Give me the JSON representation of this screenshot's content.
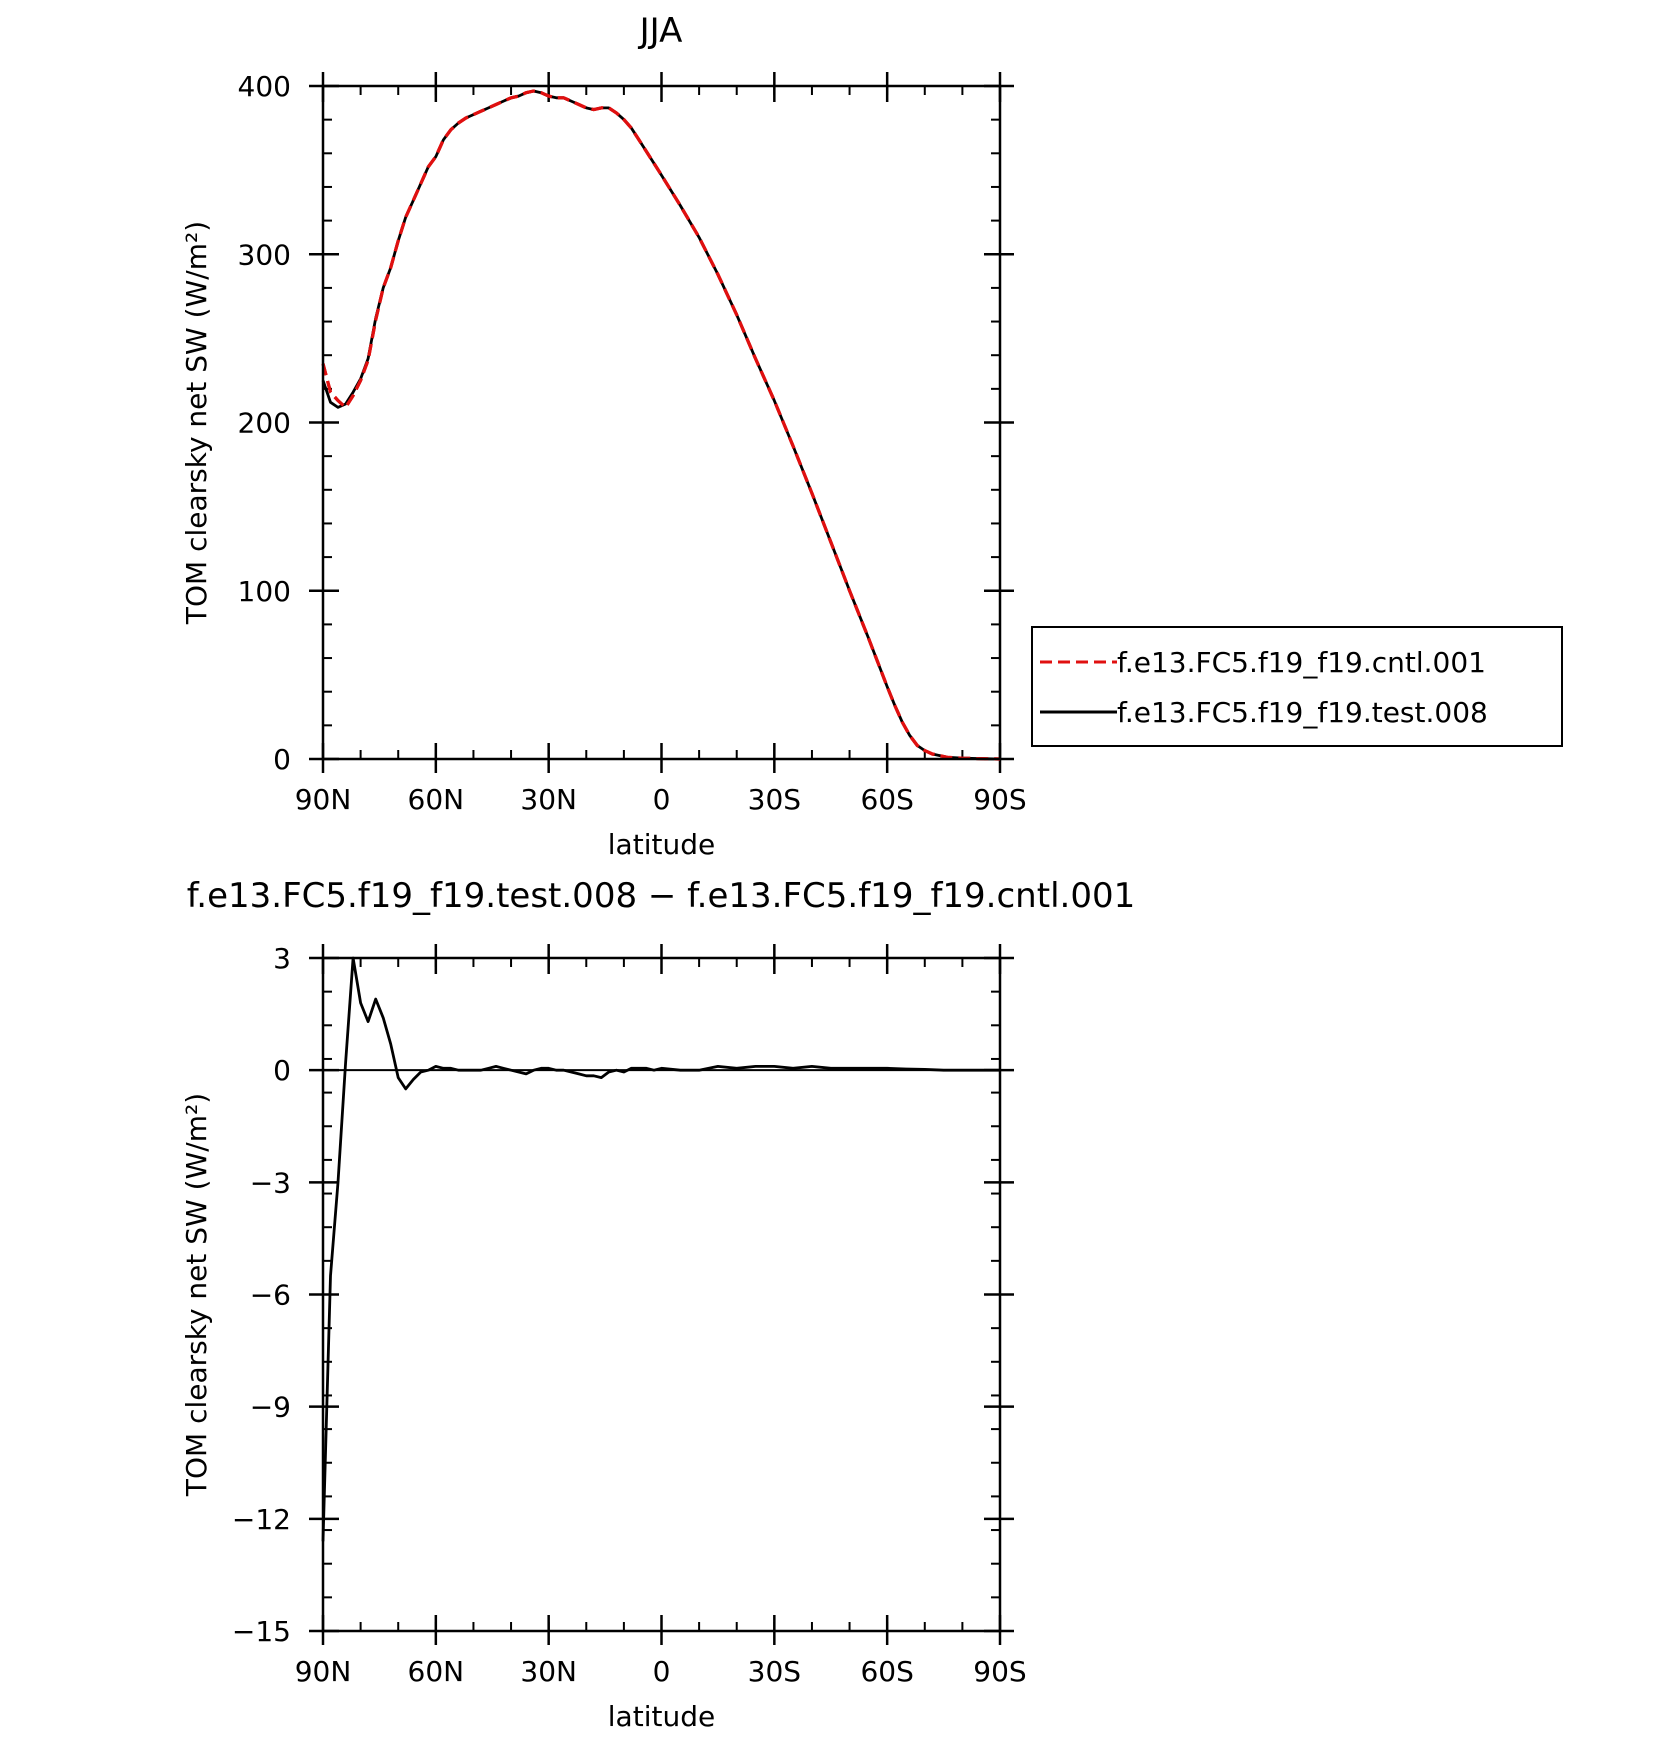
{
  "chart_data": [
    {
      "type": "line",
      "title": "JJA",
      "xlabel": "latitude",
      "ylabel": "TOM clearsky net SW (W/m²)",
      "xlim": [
        90,
        -90
      ],
      "ylim": [
        0,
        400
      ],
      "x_ticks": [
        90,
        60,
        30,
        0,
        -30,
        -60,
        -90
      ],
      "x_tick_labels": [
        "90N",
        "60N",
        "30N",
        "0",
        "30S",
        "60S",
        "90S"
      ],
      "y_ticks": [
        0,
        100,
        200,
        300,
        400
      ],
      "y_tick_labels": [
        "0",
        "100",
        "200",
        "300",
        "400"
      ],
      "legend_position": "right",
      "series": [
        {
          "name": "f.e13.FC5.f19_f19.cntl.001",
          "color": "#e01010",
          "style": "dashed",
          "x": [
            90,
            88,
            86,
            84,
            82,
            80,
            78,
            76,
            74,
            72,
            70,
            68,
            66,
            64,
            62,
            60,
            58,
            56,
            54,
            52,
            50,
            48,
            46,
            44,
            42,
            40,
            38,
            36,
            34,
            32,
            30,
            28,
            26,
            24,
            22,
            20,
            18,
            16,
            14,
            12,
            10,
            8,
            6,
            4,
            2,
            0,
            -5,
            -10,
            -15,
            -20,
            -25,
            -30,
            -35,
            -40,
            -45,
            -50,
            -55,
            -60,
            -62,
            -64,
            -66,
            -68,
            -70,
            -72,
            -74,
            -76,
            -80,
            -85,
            -90
          ],
          "y": [
            235,
            218,
            213,
            209,
            216,
            225,
            237,
            261,
            280,
            292,
            308,
            322,
            332,
            342,
            352,
            358,
            368,
            374,
            378,
            381,
            383,
            385,
            387,
            389,
            391,
            393,
            394,
            396,
            397,
            396,
            394,
            393,
            393,
            391,
            389,
            387,
            386,
            387,
            387,
            384,
            380,
            375,
            368,
            361,
            354,
            347,
            329,
            310,
            288,
            264,
            238,
            213,
            186,
            158,
            129,
            100,
            72,
            43,
            32,
            22,
            14,
            8,
            5,
            3,
            2,
            1,
            0.5,
            0.2,
            0
          ]
        },
        {
          "name": "f.e13.FC5.f19_f19.test.008",
          "color": "#000000",
          "style": "solid",
          "x": [
            90,
            88,
            86,
            84,
            82,
            80,
            78,
            76,
            74,
            72,
            70,
            68,
            66,
            64,
            62,
            60,
            58,
            56,
            54,
            52,
            50,
            48,
            46,
            44,
            42,
            40,
            38,
            36,
            34,
            32,
            30,
            28,
            26,
            24,
            22,
            20,
            18,
            16,
            14,
            12,
            10,
            8,
            6,
            4,
            2,
            0,
            -5,
            -10,
            -15,
            -20,
            -25,
            -30,
            -35,
            -40,
            -45,
            -50,
            -55,
            -60,
            -62,
            -64,
            -66,
            -68,
            -70,
            -72,
            -74,
            -76,
            -80,
            -85,
            -90
          ],
          "y": [
            225,
            212,
            209,
            211,
            218,
            226,
            238,
            262,
            280,
            292,
            308,
            322,
            332,
            342,
            352,
            358,
            368,
            374,
            378,
            381,
            383,
            385,
            387,
            389,
            391,
            393,
            394,
            396,
            397,
            396,
            394,
            393,
            393,
            391,
            389,
            387,
            386,
            387,
            387,
            384,
            380,
            375,
            368,
            361,
            354,
            347,
            329,
            310,
            288,
            264,
            238,
            213,
            186,
            158,
            129,
            100,
            72,
            43,
            32,
            22,
            14,
            8,
            5,
            3,
            2,
            1,
            0.5,
            0.2,
            0
          ]
        }
      ]
    },
    {
      "type": "line",
      "title": "f.e13.FC5.f19_f19.test.008 − f.e13.FC5.f19_f19.cntl.001",
      "xlabel": "latitude",
      "ylabel": "TOM clearsky net SW (W/m²)",
      "xlim": [
        90,
        -90
      ],
      "ylim": [
        -15,
        3
      ],
      "x_ticks": [
        90,
        60,
        30,
        0,
        -30,
        -60,
        -90
      ],
      "x_tick_labels": [
        "90N",
        "60N",
        "30N",
        "0",
        "30S",
        "60S",
        "90S"
      ],
      "y_ticks": [
        -15,
        -12,
        -9,
        -6,
        -3,
        0,
        3
      ],
      "y_tick_labels": [
        "−15",
        "−12",
        "−9",
        "−6",
        "−3",
        "0",
        "3"
      ],
      "series": [
        {
          "color": "#000000",
          "style": "solid",
          "x": [
            90,
            88,
            86,
            84,
            82,
            80,
            78,
            76,
            74,
            72,
            70,
            68,
            66,
            64,
            62,
            60,
            58,
            56,
            54,
            52,
            50,
            48,
            46,
            44,
            42,
            40,
            38,
            36,
            34,
            32,
            30,
            28,
            26,
            24,
            22,
            20,
            18,
            16,
            14,
            12,
            10,
            8,
            6,
            4,
            2,
            0,
            -5,
            -10,
            -15,
            -20,
            -25,
            -30,
            -35,
            -40,
            -45,
            -50,
            -55,
            -60,
            -65,
            -70,
            -75,
            -80,
            -85,
            -90
          ],
          "y": [
            -12.6,
            -5.5,
            -3.0,
            0.2,
            3.0,
            1.8,
            1.3,
            1.9,
            1.4,
            0.7,
            -0.2,
            -0.5,
            -0.25,
            -0.05,
            0.0,
            0.1,
            0.05,
            0.05,
            0.0,
            0.0,
            0.0,
            0.0,
            0.05,
            0.1,
            0.05,
            0.0,
            -0.05,
            -0.1,
            0.0,
            0.05,
            0.05,
            0.0,
            0.0,
            -0.05,
            -0.1,
            -0.15,
            -0.15,
            -0.2,
            -0.05,
            0.0,
            -0.05,
            0.05,
            0.05,
            0.05,
            0.0,
            0.05,
            0.0,
            0.0,
            0.1,
            0.05,
            0.1,
            0.1,
            0.05,
            0.1,
            0.05,
            0.05,
            0.05,
            0.05,
            0.03,
            0.02,
            0.0,
            0.0,
            0.0,
            0.0
          ]
        }
      ]
    }
  ]
}
